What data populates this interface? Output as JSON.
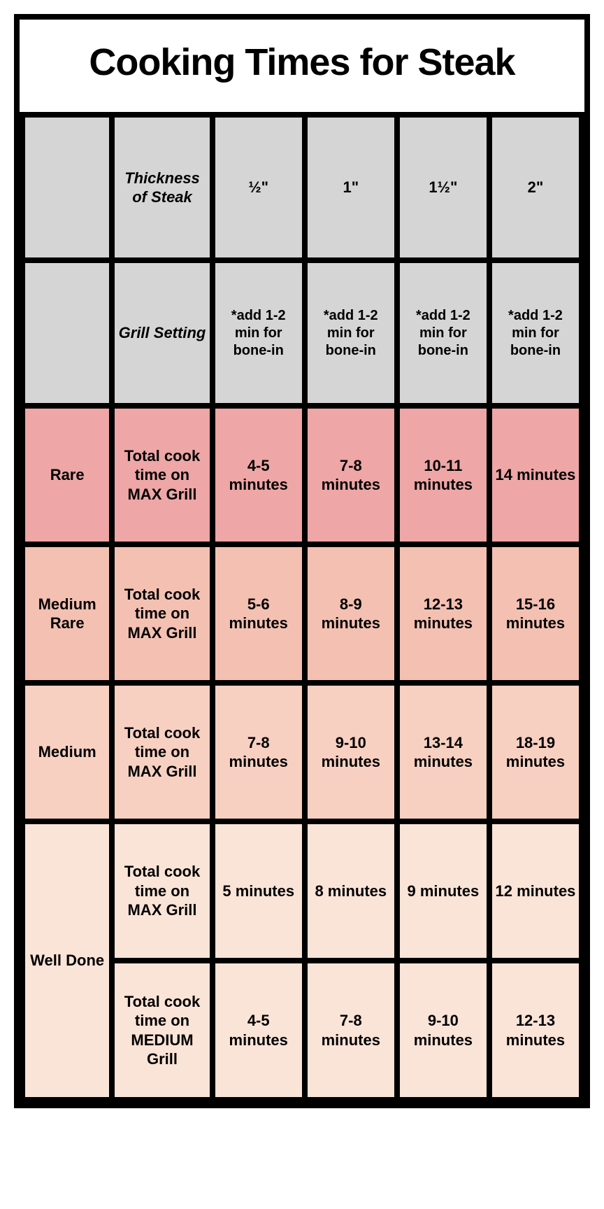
{
  "title": "Cooking Times for Steak",
  "headers": {
    "thickness_label": "Thickness of Steak",
    "grill_label": "Grill Setting",
    "thicknesses": [
      "½\"",
      "1\"",
      "1½\"",
      "2\""
    ],
    "bone_in_note": "*add 1-2 min for bone-in"
  },
  "rows": {
    "rare": {
      "label": "Rare",
      "setting": "Total cook time on MAX Grill",
      "times": [
        "4-5 minutes",
        "7-8 minutes",
        "10-11 minutes",
        "14 minutes"
      ],
      "bg_color": "#eea6a6"
    },
    "medrare": {
      "label": "Medium Rare",
      "setting": "Total cook time on MAX Grill",
      "times": [
        "5-6 minutes",
        "8-9 minutes",
        "12-13 minutes",
        "15-16 minutes"
      ],
      "bg_color": "#f4c0b2"
    },
    "medium": {
      "label": "Medium",
      "setting": "Total cook time on MAX Grill",
      "times": [
        "7-8 minutes",
        "9-10 minutes",
        "13-14 minutes",
        "18-19 minutes"
      ],
      "bg_color": "#f7d0c1"
    },
    "well": {
      "label": "Well Done",
      "setting_max": "Total cook time on MAX Grill",
      "times_max": [
        "5 minutes",
        "8 minutes",
        "9 minutes",
        "12 minutes"
      ],
      "setting_med": "Total cook time on MEDIUM Grill",
      "times_med": [
        "4-5 minutes",
        "7-8 minutes",
        "9-10 minutes",
        "12-13 minutes"
      ],
      "bg_color": "#fae3d7"
    }
  },
  "colors": {
    "border": "#000000",
    "header_bg": "#d5d5d5",
    "page_bg": "#ffffff"
  }
}
